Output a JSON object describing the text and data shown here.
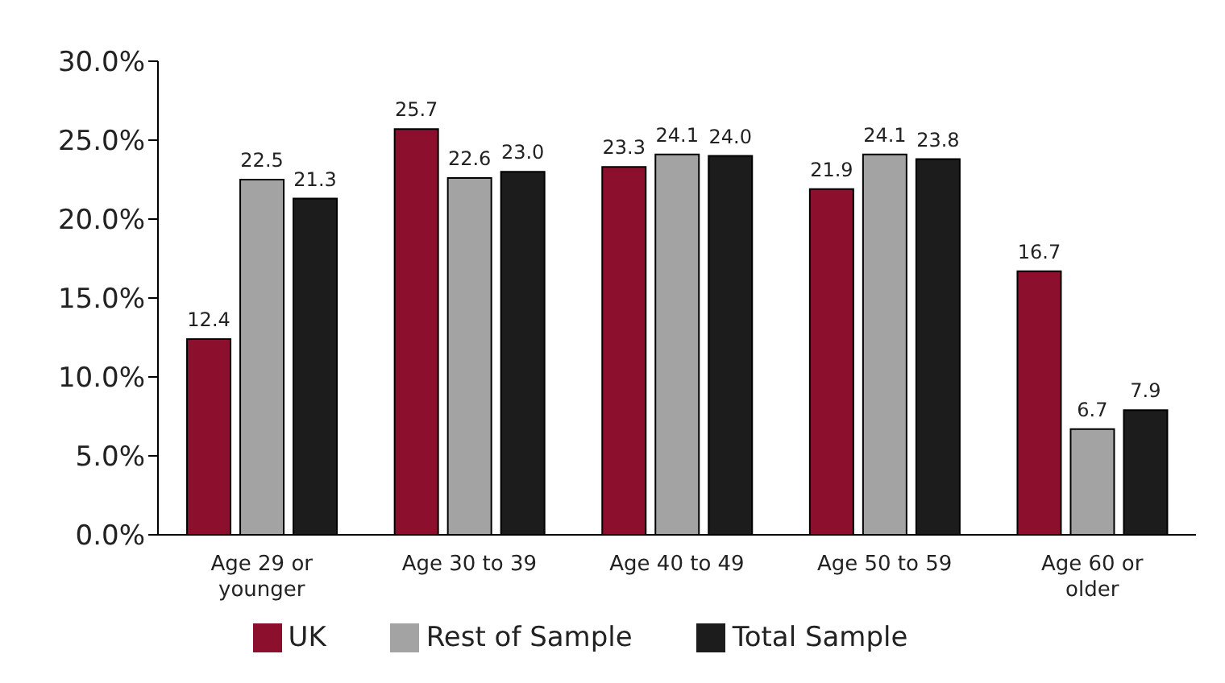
{
  "chart_data": {
    "type": "bar",
    "categories": [
      "Age 29 or younger",
      "Age 30 to 39",
      "Age 40 to 49",
      "Age 50 to 59",
      "Age 60 or older"
    ],
    "series": [
      {
        "name": "UK",
        "color": "#8c0f2d",
        "values": [
          12.4,
          25.7,
          23.3,
          21.9,
          16.7
        ],
        "value_labels": [
          "12.4",
          "25.7",
          "23.3",
          "21.9",
          "16.7"
        ]
      },
      {
        "name": "Rest of Sample",
        "color": "#a3a3a3",
        "values": [
          22.5,
          22.6,
          24.1,
          24.1,
          6.7
        ],
        "value_labels": [
          "22.5",
          "22.6",
          "24.1",
          "24.1",
          "6.7"
        ]
      },
      {
        "name": "Total Sample",
        "color": "#1c1c1c",
        "values": [
          21.3,
          23.0,
          24.0,
          23.8,
          7.9
        ],
        "value_labels": [
          "21.3",
          "23.0",
          "24.0",
          "23.8",
          "7.9"
        ]
      }
    ],
    "ylim": [
      0,
      30
    ],
    "yticks": [
      {
        "value": 0,
        "label": "0.0%"
      },
      {
        "value": 5,
        "label": "5.0%"
      },
      {
        "value": 10,
        "label": "10.0%"
      },
      {
        "value": 15,
        "label": "15.0%"
      },
      {
        "value": 20,
        "label": "20.0%"
      },
      {
        "value": 25,
        "label": "25.0%"
      },
      {
        "value": 30,
        "label": "30.0%"
      }
    ],
    "grid": false,
    "legend": "bottom"
  }
}
